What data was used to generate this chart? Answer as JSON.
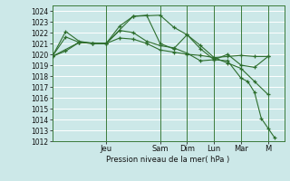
{
  "background_color": "#cce8e8",
  "grid_color": "#ffffff",
  "line_color": "#2d6e2d",
  "xlabel": "Pression niveau de la mer( hPa )",
  "ylim": [
    1012,
    1024.5
  ],
  "yticks": [
    1012,
    1013,
    1014,
    1015,
    1016,
    1017,
    1018,
    1019,
    1020,
    1021,
    1022,
    1023,
    1024
  ],
  "day_labels": [
    "Jeu",
    "Sam",
    "Dim",
    "Lun",
    "Mar",
    "M"
  ],
  "day_positions": [
    2,
    4,
    5,
    6,
    7,
    8
  ],
  "xlim": [
    0,
    8.6
  ],
  "series": [
    {
      "x": [
        0,
        0.5,
        1,
        1.5,
        2,
        2.5,
        3,
        3.5,
        4,
        4.5,
        5,
        5.5,
        6,
        6.5,
        7,
        7.5,
        8
      ],
      "y": [
        1019.8,
        1021.6,
        1021.1,
        1021.0,
        1021.0,
        1022.6,
        1023.5,
        1023.6,
        1021.0,
        1020.5,
        1021.8,
        1020.8,
        1019.7,
        1019.8,
        1019.9,
        1019.8,
        1019.8
      ]
    },
    {
      "x": [
        0,
        0.5,
        1,
        1.5,
        2,
        2.5,
        3,
        3.5,
        4,
        4.5,
        5,
        5.5,
        6,
        6.5,
        7,
        7.5,
        8
      ],
      "y": [
        1019.8,
        1022.1,
        1021.2,
        1021.0,
        1021.0,
        1022.2,
        1022.0,
        1021.2,
        1020.8,
        1020.6,
        1020.1,
        1019.4,
        1019.5,
        1020.0,
        1019.0,
        1018.8,
        1019.8
      ]
    },
    {
      "x": [
        0,
        0.5,
        1,
        1.5,
        2,
        2.5,
        3,
        3.5,
        4,
        4.5,
        5,
        5.5,
        6,
        6.5,
        7,
        7.5,
        8
      ],
      "y": [
        1019.8,
        1020.3,
        1021.1,
        1021.0,
        1021.0,
        1021.5,
        1021.4,
        1021.0,
        1020.4,
        1020.2,
        1020.0,
        1019.9,
        1019.7,
        1019.2,
        1018.7,
        1017.5,
        1016.3
      ]
    },
    {
      "x": [
        0,
        1,
        2,
        3,
        4,
        4.5,
        5,
        5.5,
        6,
        6.5,
        7,
        7.25,
        7.5,
        7.75,
        8,
        8.25
      ],
      "y": [
        1019.8,
        1021.1,
        1021.0,
        1023.5,
        1023.6,
        1022.5,
        1021.8,
        1020.5,
        1019.5,
        1019.4,
        1017.8,
        1017.5,
        1016.5,
        1014.1,
        1013.2,
        1012.3
      ]
    }
  ]
}
